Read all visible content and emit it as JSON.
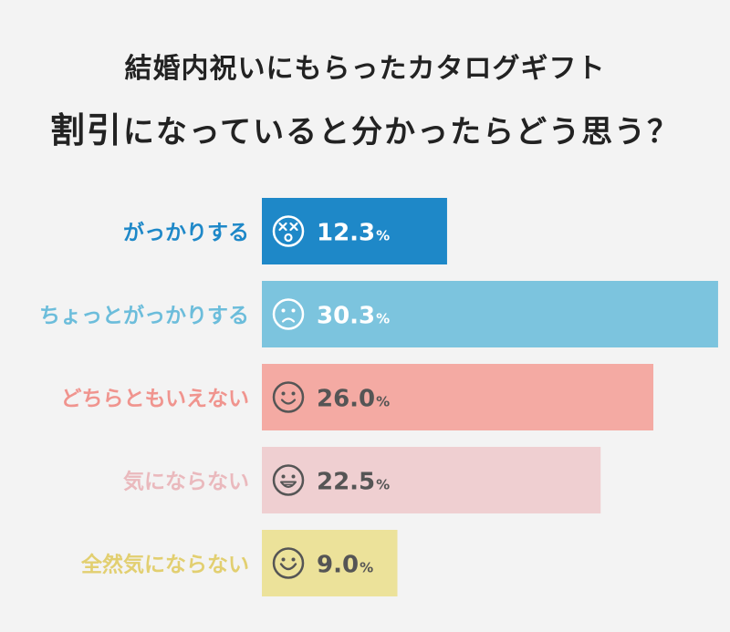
{
  "chart_data": {
    "type": "bar",
    "orientation": "horizontal",
    "title_line1": "結婚内祝いにもらったカタログギフト",
    "title_line2_prefix": "割引",
    "title_line2_rest": "になっていると分かったらどう思う？",
    "categories": [
      "がっかりする",
      "ちょっとがっかりする",
      "どちらともいえない",
      "気にならない",
      "全然気にならない"
    ],
    "values": [
      12.3,
      30.3,
      26.0,
      22.5,
      9.0
    ],
    "value_labels": [
      "12.3",
      "30.3",
      "26.0",
      "22.5",
      "9.0"
    ],
    "unit": "%",
    "icons": [
      "dizzy-face-icon",
      "frowning-face-icon",
      "smiling-face-icon",
      "grinning-face-icon",
      "happy-face-icon"
    ],
    "colors": {
      "bars": [
        "#1e88c8",
        "#7cc4de",
        "#f4aaa3",
        "#efcfd1",
        "#ece29a"
      ],
      "labels": [
        "#1e88c8",
        "#6cbddb",
        "#f0948e",
        "#eab9bd",
        "#e2cf70"
      ],
      "value_text": [
        "#ffffff",
        "#ffffff",
        "#555555",
        "#555555",
        "#555555"
      ]
    }
  }
}
